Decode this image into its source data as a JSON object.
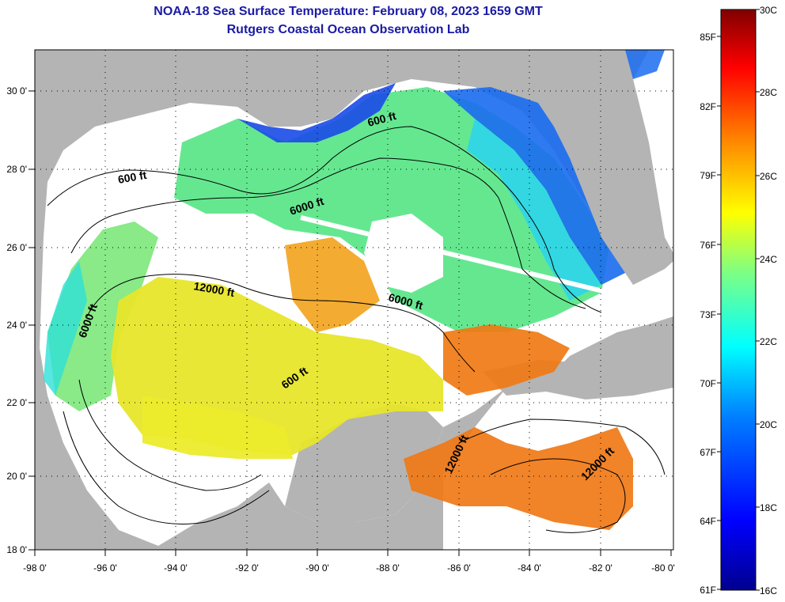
{
  "title": "NOAA-18 Sea Surface Temperature:  February 08, 2023 1659 GMT",
  "subtitle": "Rutgers Coastal Ocean Observation Lab",
  "x_ticks": [
    "-98 0'",
    "-96 0'",
    "-94 0'",
    "-92 0'",
    "-90 0'",
    "-88 0'",
    "-86 0'",
    "-84 0'",
    "-82 0'",
    "-80 0'"
  ],
  "y_ticks": [
    "30 0'",
    "28 0'",
    "26 0'",
    "24 0'",
    "22 0'",
    "20 0'",
    "18 0'"
  ],
  "contour_labels": [
    "600 ft",
    "600 ft",
    "600 ft",
    "6000 ft",
    "6000 ft",
    "6000 ft",
    "12000 ft",
    "12000 ft",
    "12000 ft"
  ],
  "colorbar": {
    "celsius": [
      "30C",
      "28C",
      "26C",
      "24C",
      "22C",
      "20C",
      "18C",
      "16C"
    ],
    "fahrenheit": [
      "85F",
      "82F",
      "79F",
      "76F",
      "73F",
      "70F",
      "67F",
      "64F",
      "61F"
    ]
  },
  "colors": {
    "land": "#b4b4b4",
    "nodata": "#ffffff",
    "title": "#1a1aa6"
  }
}
